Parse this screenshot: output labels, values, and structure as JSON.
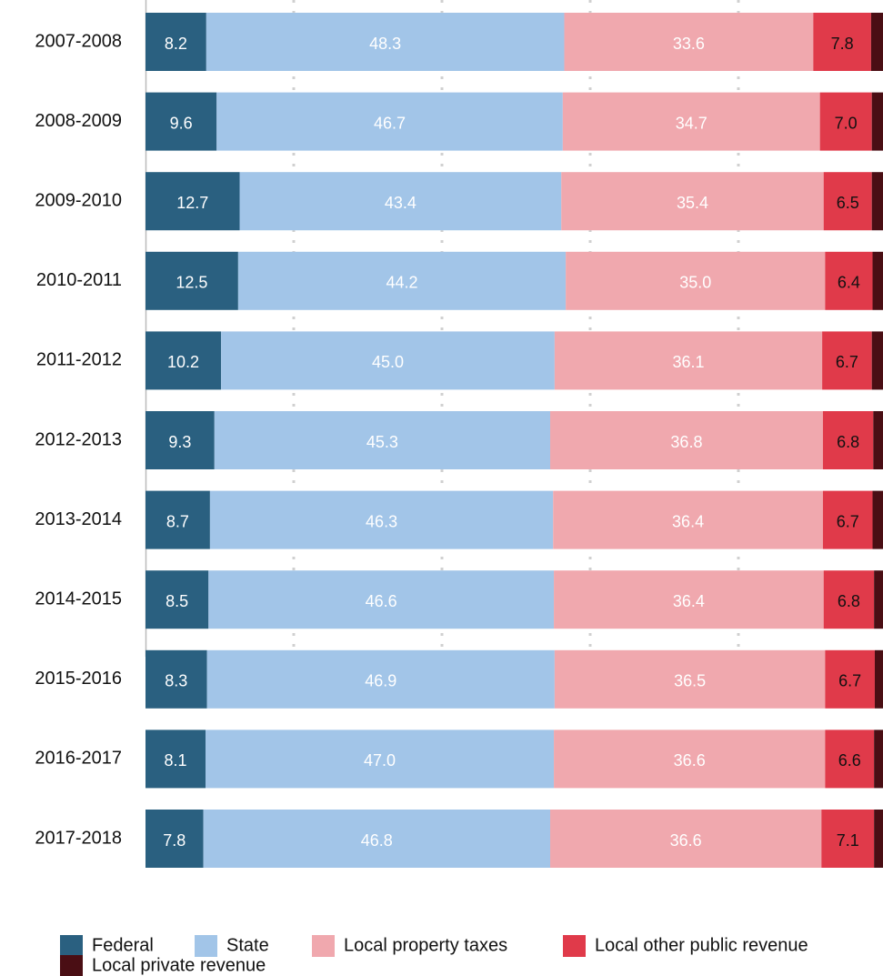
{
  "chart_data": {
    "type": "stacked-bar-horizontal",
    "categories": [
      "2007-2008",
      "2008-2009",
      "2009-2010",
      "2010-2011",
      "2011-2012",
      "2012-2013",
      "2013-2014",
      "2014-2015",
      "2015-2016",
      "2016-2017",
      "2017-2018"
    ],
    "series": [
      {
        "name": "Federal",
        "color": "#2a6080",
        "label_color": "#ffffff",
        "values": [
          8.2,
          9.6,
          12.7,
          12.5,
          10.2,
          9.3,
          8.7,
          8.5,
          8.3,
          8.1,
          7.8
        ],
        "value_labels": [
          "8.2",
          "9.6",
          "12.7",
          "12.5",
          "10.2",
          "9.3",
          "8.7",
          "8.5",
          "8.3",
          "8.1",
          "7.8"
        ]
      },
      {
        "name": "State",
        "color": "#a2c5e8",
        "label_color": "#ffffff",
        "values": [
          48.3,
          46.7,
          43.4,
          44.2,
          45.0,
          45.3,
          46.3,
          46.6,
          46.9,
          47.0,
          46.8
        ],
        "value_labels": [
          "48.3",
          "46.7",
          "43.4",
          "44.2",
          "45.0",
          "45.3",
          "46.3",
          "46.6",
          "46.9",
          "47.0",
          "46.8"
        ]
      },
      {
        "name": "Local property taxes",
        "color": "#f0a8ae",
        "label_color": "#ffffff",
        "values": [
          33.6,
          34.7,
          35.4,
          35.0,
          36.1,
          36.8,
          36.4,
          36.4,
          36.5,
          36.6,
          36.6
        ],
        "value_labels": [
          "33.6",
          "34.7",
          "35.4",
          "35.0",
          "36.1",
          "36.8",
          "36.4",
          "36.4",
          "36.5",
          "36.6",
          "36.6"
        ]
      },
      {
        "name": "Local other public revenue",
        "color": "#e03a4a",
        "label_color": "#111111",
        "values": [
          7.8,
          7.0,
          6.5,
          6.4,
          6.7,
          6.8,
          6.7,
          6.8,
          6.7,
          6.6,
          7.1
        ],
        "value_labels": [
          "7.8",
          "7.0",
          "6.5",
          "6.4",
          "6.7",
          "6.8",
          "6.7",
          "6.8",
          "6.7",
          "6.6",
          "7.1"
        ]
      },
      {
        "name": "Local private revenue",
        "color": "#4a0e14",
        "values": [
          2.1,
          2.0,
          2.0,
          1.9,
          2.0,
          1.8,
          1.9,
          1.7,
          1.6,
          1.7,
          1.7
        ]
      }
    ],
    "xlim": [
      0,
      100
    ],
    "xticks": [
      20,
      40,
      60,
      80
    ],
    "grid": true,
    "legend": "bottom"
  }
}
